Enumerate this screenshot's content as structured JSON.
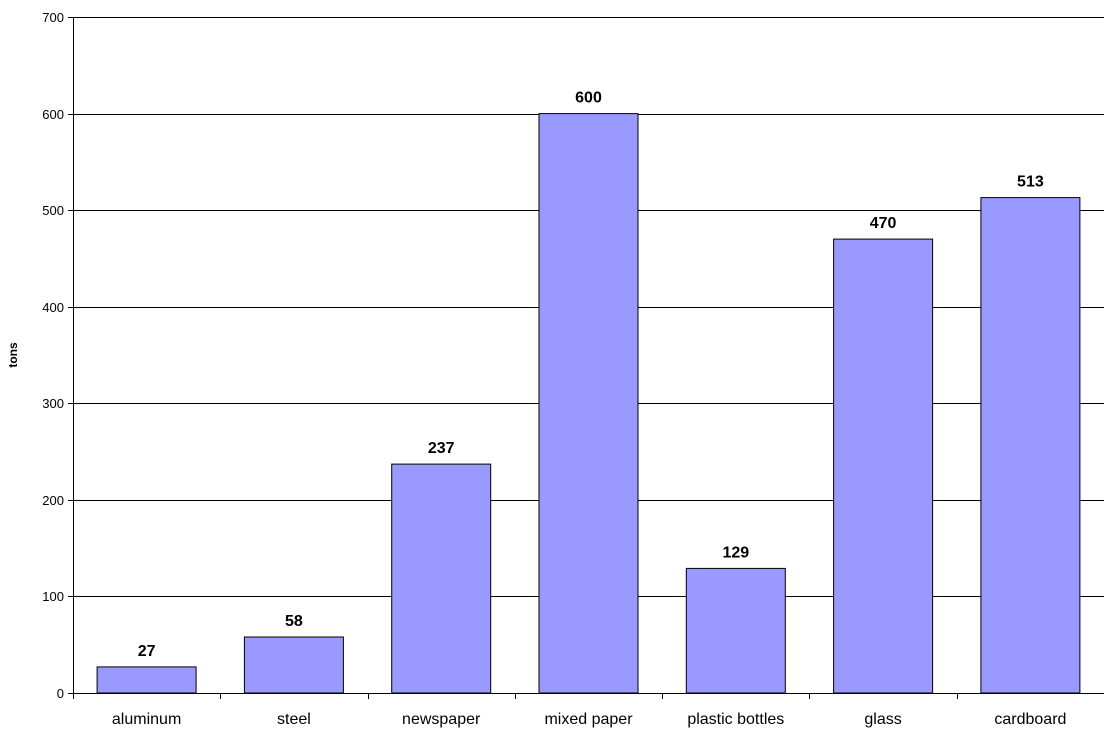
{
  "chart_data": {
    "type": "bar",
    "title": "",
    "xlabel": "",
    "ylabel": "tons",
    "categories": [
      "aluminum",
      "steel",
      "newspaper",
      "mixed paper",
      "plastic bottles",
      "glass",
      "cardboard"
    ],
    "values": [
      27,
      58,
      237,
      600,
      129,
      470,
      513
    ],
    "data_labels": [
      "27",
      "58",
      "237",
      "600",
      "129",
      "470",
      "513"
    ],
    "ylim": [
      0,
      700
    ],
    "yticks": [
      0,
      100,
      200,
      300,
      400,
      500,
      600,
      700
    ],
    "ytick_labels": [
      "0",
      "100",
      "200",
      "300",
      "400",
      "500",
      "600",
      "700"
    ],
    "grid": true,
    "legend": "none",
    "colors": {
      "bar_fill": "#9999ff",
      "bar_stroke": "#000000",
      "gridline": "#000000",
      "axis": "#000000"
    }
  }
}
